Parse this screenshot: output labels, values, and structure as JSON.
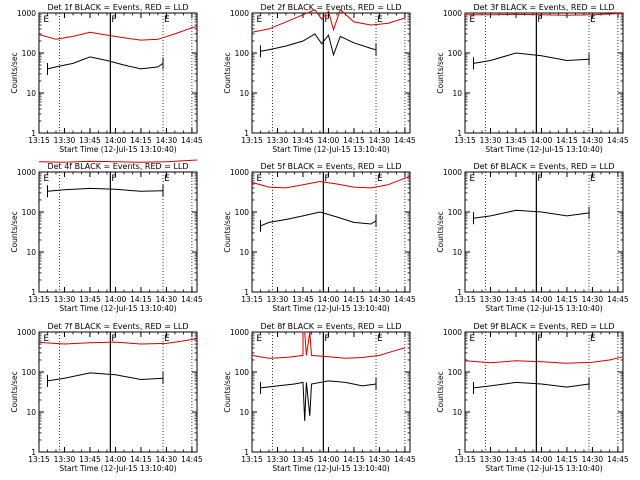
{
  "figure": {
    "xlabel": "Start Time (12-Jul-15 13:10:40)",
    "ylabel": "Counts/sec",
    "xtick_labels": [
      "13:15",
      "13:30",
      "13:45",
      "14:00",
      "14:15",
      "14:30",
      "14:45"
    ],
    "ytick_labels": [
      "1",
      "10",
      "100",
      "1000"
    ],
    "colors": {
      "events": "#000000",
      "lld": "#d40000",
      "frame": "#000000",
      "dotted": "#000000"
    }
  },
  "chart_data": [
    {
      "type": "line",
      "title": "Det 1f  BLACK = Events, RED = LLD",
      "xlim": [
        "13:15",
        "14:48"
      ],
      "ylim": [
        1,
        1000
      ],
      "yscale": "log",
      "markers": [
        {
          "time": "13:17",
          "label": "E"
        },
        {
          "time": "13:57",
          "label": "F"
        },
        {
          "time": "14:28",
          "label": "E"
        }
      ],
      "dotted_lines": [
        "13:27",
        "14:28",
        "14:45"
      ],
      "solid_line": "13:57",
      "series": [
        {
          "name": "LLD",
          "color": "red",
          "x": [
            "13:15",
            "13:25",
            "13:35",
            "13:45",
            "13:55",
            "14:05",
            "14:15",
            "14:25",
            "14:35",
            "14:45",
            "14:48"
          ],
          "values": [
            290,
            220,
            260,
            330,
            280,
            240,
            210,
            220,
            300,
            430,
            460
          ]
        },
        {
          "name": "Events",
          "color": "black",
          "x": [
            "13:20",
            "13:25",
            "13:35",
            "13:45",
            "13:55",
            "14:05",
            "14:15",
            "14:25",
            "14:28"
          ],
          "values": [
            40,
            45,
            55,
            80,
            65,
            50,
            40,
            45,
            55
          ]
        }
      ]
    },
    {
      "type": "line",
      "title": "Det 2f  BLACK = Events, RED = LLD",
      "xlim": [
        "13:15",
        "14:48"
      ],
      "ylim": [
        1,
        1000
      ],
      "yscale": "log",
      "markers": [
        {
          "time": "13:17",
          "label": "E"
        },
        {
          "time": "13:57",
          "label": "F"
        },
        {
          "time": "14:28",
          "label": "E"
        }
      ],
      "dotted_lines": [
        "13:27",
        "14:28",
        "14:45"
      ],
      "solid_line": "13:57",
      "series": [
        {
          "name": "LLD",
          "color": "red",
          "x": [
            "13:15",
            "13:25",
            "13:35",
            "13:45",
            "13:52",
            "13:56",
            "14:00",
            "14:03",
            "14:07",
            "14:15",
            "14:25",
            "14:35",
            "14:45"
          ],
          "values": [
            330,
            400,
            600,
            900,
            1200,
            700,
            1100,
            380,
            1200,
            600,
            500,
            550,
            750
          ]
        },
        {
          "name": "Events",
          "color": "black",
          "x": [
            "13:20",
            "13:25",
            "13:35",
            "13:45",
            "13:52",
            "13:56",
            "14:00",
            "14:03",
            "14:07",
            "14:15",
            "14:25",
            "14:28"
          ],
          "values": [
            110,
            120,
            150,
            200,
            300,
            170,
            280,
            90,
            260,
            180,
            130,
            120
          ]
        }
      ]
    },
    {
      "type": "line",
      "title": "Det 3f  BLACK = Events, RED = LLD",
      "xlim": [
        "13:15",
        "14:48"
      ],
      "ylim": [
        1,
        1000
      ],
      "yscale": "log",
      "markers": [
        {
          "time": "13:17",
          "label": "E"
        },
        {
          "time": "13:57",
          "label": "F"
        },
        {
          "time": "14:28",
          "label": "E"
        }
      ],
      "dotted_lines": [
        "13:27",
        "14:28",
        "14:45"
      ],
      "solid_line": "13:57",
      "series": [
        {
          "name": "LLD",
          "color": "red",
          "x": [
            "13:15",
            "13:30",
            "13:45",
            "14:00",
            "14:15",
            "14:30",
            "14:48"
          ],
          "values": [
            900,
            900,
            920,
            900,
            880,
            900,
            980
          ]
        },
        {
          "name": "Events",
          "color": "black",
          "x": [
            "13:20",
            "13:30",
            "13:45",
            "14:00",
            "14:15",
            "14:28"
          ],
          "values": [
            55,
            65,
            100,
            85,
            65,
            70
          ]
        }
      ]
    },
    {
      "type": "line",
      "title": "Det 4f  BLACK = Events, RED = LLD",
      "xlim": [
        "13:15",
        "14:48"
      ],
      "ylim": [
        1,
        1000
      ],
      "yscale": "log",
      "markers": [
        {
          "time": "13:17",
          "label": "E"
        },
        {
          "time": "13:57",
          "label": "F"
        },
        {
          "time": "14:28",
          "label": "E"
        }
      ],
      "dotted_lines": [
        "13:27",
        "14:28",
        "14:45"
      ],
      "solid_line": "13:57",
      "series": [
        {
          "name": "LLD",
          "color": "red",
          "x": [
            "13:15",
            "13:30",
            "13:45",
            "14:00",
            "14:15",
            "14:30",
            "14:48"
          ],
          "values": [
            1800,
            1750,
            1850,
            1800,
            1750,
            1800,
            2000
          ]
        },
        {
          "name": "Events",
          "color": "black",
          "x": [
            "13:20",
            "13:30",
            "13:45",
            "14:00",
            "14:15",
            "14:28"
          ],
          "values": [
            330,
            360,
            390,
            370,
            330,
            340
          ]
        }
      ]
    },
    {
      "type": "line",
      "title": "Det 5f  BLACK = Events, RED = LLD",
      "xlim": [
        "13:15",
        "14:48"
      ],
      "ylim": [
        1,
        1000
      ],
      "yscale": "log",
      "markers": [
        {
          "time": "13:17",
          "label": "E"
        },
        {
          "time": "13:57",
          "label": "F"
        },
        {
          "time": "14:28",
          "label": "E"
        }
      ],
      "dotted_lines": [
        "13:27",
        "14:28",
        "14:45"
      ],
      "solid_line": "13:57",
      "series": [
        {
          "name": "LLD",
          "color": "red",
          "x": [
            "13:15",
            "13:25",
            "13:35",
            "13:45",
            "13:55",
            "14:05",
            "14:15",
            "14:25",
            "14:35",
            "14:45",
            "14:48"
          ],
          "values": [
            550,
            420,
            400,
            480,
            580,
            500,
            420,
            400,
            480,
            700,
            780
          ]
        },
        {
          "name": "Events",
          "color": "black",
          "x": [
            "13:20",
            "13:25",
            "13:35",
            "13:45",
            "13:55",
            "14:05",
            "14:15",
            "14:25",
            "14:28"
          ],
          "values": [
            45,
            55,
            65,
            80,
            100,
            75,
            55,
            50,
            60
          ]
        }
      ]
    },
    {
      "type": "line",
      "title": "Det 6f  BLACK = Events, RED = LLD",
      "xlim": [
        "13:15",
        "14:48"
      ],
      "ylim": [
        1,
        1000
      ],
      "yscale": "log",
      "markers": [
        {
          "time": "13:17",
          "label": "E"
        },
        {
          "time": "13:57",
          "label": "F"
        },
        {
          "time": "14:28",
          "label": "E"
        }
      ],
      "dotted_lines": [
        "13:27",
        "14:28",
        "14:45"
      ],
      "solid_line": "13:57",
      "series": [
        {
          "name": "Events",
          "color": "black",
          "x": [
            "13:20",
            "13:30",
            "13:45",
            "14:00",
            "14:15",
            "14:28"
          ],
          "values": [
            70,
            80,
            110,
            100,
            80,
            95
          ]
        }
      ]
    },
    {
      "type": "line",
      "title": "Det 7f  BLACK = Events, RED = LLD",
      "xlim": [
        "13:15",
        "14:48"
      ],
      "ylim": [
        1,
        1000
      ],
      "yscale": "log",
      "markers": [
        {
          "time": "13:17",
          "label": "E"
        },
        {
          "time": "13:57",
          "label": "F"
        },
        {
          "time": "14:28",
          "label": "E"
        }
      ],
      "dotted_lines": [
        "13:27",
        "14:28",
        "14:45"
      ],
      "solid_line": "13:57",
      "series": [
        {
          "name": "LLD",
          "color": "red",
          "x": [
            "13:15",
            "13:30",
            "13:45",
            "14:00",
            "14:15",
            "14:30",
            "14:40",
            "14:48"
          ],
          "values": [
            550,
            500,
            540,
            560,
            500,
            520,
            600,
            680
          ]
        },
        {
          "name": "Events",
          "color": "black",
          "x": [
            "13:20",
            "13:30",
            "13:45",
            "14:00",
            "14:15",
            "14:28"
          ],
          "values": [
            60,
            70,
            95,
            85,
            65,
            70
          ]
        }
      ]
    },
    {
      "type": "line",
      "title": "Det 8f  BLACK = Events, RED = LLD",
      "xlim": [
        "13:15",
        "14:48"
      ],
      "ylim": [
        1,
        1000
      ],
      "yscale": "log",
      "markers": [
        {
          "time": "13:17",
          "label": "E"
        },
        {
          "time": "13:57",
          "label": "F"
        },
        {
          "time": "14:28",
          "label": "E"
        }
      ],
      "dotted_lines": [
        "13:27",
        "14:28",
        "14:45"
      ],
      "solid_line": "13:57",
      "series": [
        {
          "name": "LLD",
          "color": "red",
          "x": [
            "13:15",
            "13:25",
            "13:35",
            "13:45",
            "13:45",
            "13:46",
            "13:47",
            "13:49",
            "13:50",
            "14:00",
            "14:10",
            "14:20",
            "14:30",
            "14:40",
            "14:45"
          ],
          "values": [
            260,
            220,
            230,
            260,
            1000,
            1000,
            260,
            1000,
            260,
            240,
            220,
            230,
            260,
            350,
            400
          ]
        },
        {
          "name": "Events",
          "color": "black",
          "x": [
            "13:20",
            "13:30",
            "13:40",
            "13:45",
            "13:46",
            "13:47",
            "13:49",
            "13:50",
            "14:00",
            "14:10",
            "14:20",
            "14:28"
          ],
          "values": [
            40,
            45,
            50,
            55,
            6,
            55,
            8,
            50,
            60,
            55,
            45,
            50
          ]
        }
      ]
    },
    {
      "type": "line",
      "title": "Det 9f  BLACK = Events, RED = LLD",
      "xlim": [
        "13:15",
        "14:48"
      ],
      "ylim": [
        1,
        1000
      ],
      "yscale": "log",
      "markers": [
        {
          "time": "13:17",
          "label": "E"
        },
        {
          "time": "13:57",
          "label": "F"
        },
        {
          "time": "14:28",
          "label": "E"
        }
      ],
      "dotted_lines": [
        "13:27",
        "14:28",
        "14:45"
      ],
      "solid_line": "13:57",
      "series": [
        {
          "name": "LLD",
          "color": "red",
          "x": [
            "13:15",
            "13:30",
            "13:45",
            "14:00",
            "14:15",
            "14:30",
            "14:40",
            "14:48"
          ],
          "values": [
            190,
            170,
            190,
            180,
            165,
            175,
            200,
            240
          ]
        },
        {
          "name": "Events",
          "color": "black",
          "x": [
            "13:20",
            "13:30",
            "13:45",
            "14:00",
            "14:15",
            "14:28"
          ],
          "values": [
            40,
            45,
            55,
            50,
            42,
            50
          ]
        }
      ]
    }
  ]
}
